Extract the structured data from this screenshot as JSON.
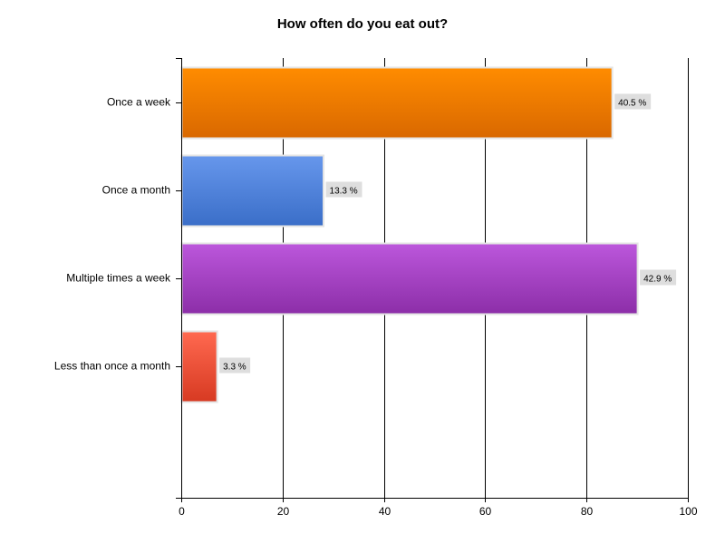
{
  "chart_data": {
    "type": "bar",
    "orientation": "horizontal",
    "title": "How often do you eat out?",
    "xlabel": "",
    "ylabel": "",
    "categories": [
      "Once a week",
      "Once a month",
      "Multiple times a week",
      "Less than once a month"
    ],
    "values": [
      85,
      28,
      90,
      7
    ],
    "data_labels": [
      "40.5 %",
      "13.3 %",
      "42.9 %",
      "3.3 %"
    ],
    "xlim": [
      0,
      100
    ],
    "xticks": [
      "0",
      "20",
      "40",
      "60",
      "80",
      "100"
    ],
    "grid": "vertical",
    "legend": "none",
    "colors": [
      {
        "top": "#ff8c00",
        "bottom": "#d96800"
      },
      {
        "top": "#6797ec",
        "bottom": "#3a6ec8"
      },
      {
        "top": "#bc57dc",
        "bottom": "#8c2ea8"
      },
      {
        "top": "#ff6950",
        "bottom": "#d73a22"
      }
    ]
  }
}
